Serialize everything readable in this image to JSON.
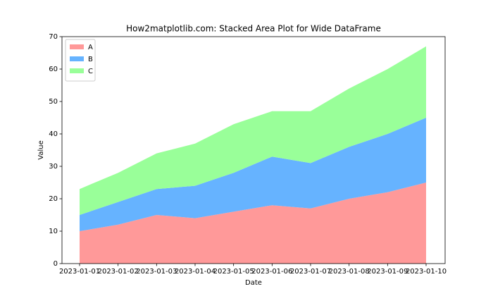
{
  "chart_data": {
    "type": "stacked_area",
    "title": "How2matplotlib.com: Stacked Area Plot for Wide DataFrame",
    "x_label": "Date",
    "y_label": "Value",
    "categories": [
      "2023-01-01",
      "2023-01-02",
      "2023-01-03",
      "2023-01-04",
      "2023-01-05",
      "2023-01-06",
      "2023-01-07",
      "2023-01-08",
      "2023-01-09",
      "2023-01-10"
    ],
    "series": [
      {
        "name": "A",
        "color": "#ff9999",
        "values": [
          10,
          12,
          15,
          14,
          16,
          18,
          17,
          20,
          22,
          25
        ]
      },
      {
        "name": "B",
        "color": "#66b3ff",
        "values": [
          5,
          7,
          8,
          10,
          12,
          15,
          14,
          16,
          18,
          20
        ]
      },
      {
        "name": "C",
        "color": "#99ff99",
        "values": [
          8,
          9,
          11,
          13,
          15,
          14,
          16,
          18,
          20,
          22
        ]
      }
    ],
    "ylim": [
      0,
      70
    ],
    "yticks": [
      0,
      10,
      20,
      30,
      40,
      50,
      60,
      70
    ],
    "legend": "upper left",
    "grid": false
  }
}
